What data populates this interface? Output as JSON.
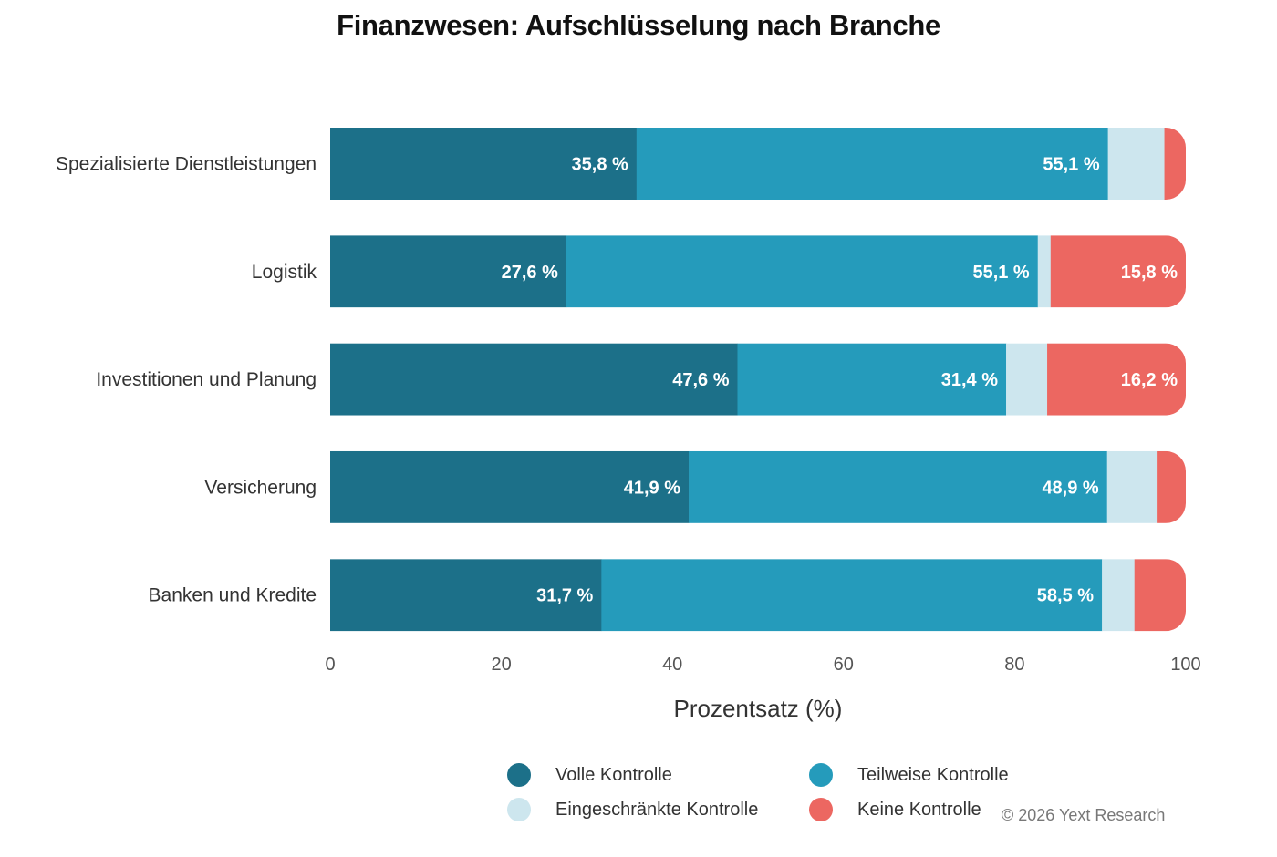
{
  "chart_data": {
    "type": "bar",
    "orientation": "horizontal",
    "stacked": true,
    "title": "Finanzwesen: Aufschlüsselung nach Branche",
    "xlabel": "Prozentsatz (%)",
    "ylabel": "",
    "xlim": [
      0,
      100
    ],
    "xticks": [
      "0",
      "20",
      "40",
      "60",
      "80",
      "100"
    ],
    "grid": false,
    "legend_position": "bottom",
    "categories": [
      "Spezialisierte Dienstleistungen",
      "Logistik",
      "Investitionen und Planung",
      "Versicherung",
      "Banken und Kredite"
    ],
    "series": [
      {
        "name": "Volle Kontrolle",
        "color": "#1c7089",
        "values": [
          35.8,
          27.6,
          47.6,
          41.9,
          31.7
        ],
        "labels": [
          "35,8 %",
          "27,6 %",
          "47,6 %",
          "41,9 %",
          "31,7 %"
        ]
      },
      {
        "name": "Teilweise Kontrolle",
        "color": "#259bbb",
        "values": [
          55.1,
          55.1,
          31.4,
          48.9,
          58.5
        ],
        "labels": [
          "55,1 %",
          "55,1 %",
          "31,4 %",
          "48,9 %",
          "58,5 %"
        ]
      },
      {
        "name": "Eingeschränkte Kontrolle",
        "color": "#cde6ee",
        "values": [
          6.6,
          1.5,
          4.8,
          5.8,
          3.8
        ],
        "labels": [
          "",
          "",
          "",
          "",
          ""
        ]
      },
      {
        "name": "Keine Kontrolle",
        "color": "#ec6761",
        "values": [
          2.5,
          15.8,
          16.2,
          3.4,
          6.0
        ],
        "labels": [
          "",
          "15,8 %",
          "16,2 %",
          "",
          ""
        ]
      }
    ]
  },
  "credit": "© 2026 Yext Research"
}
